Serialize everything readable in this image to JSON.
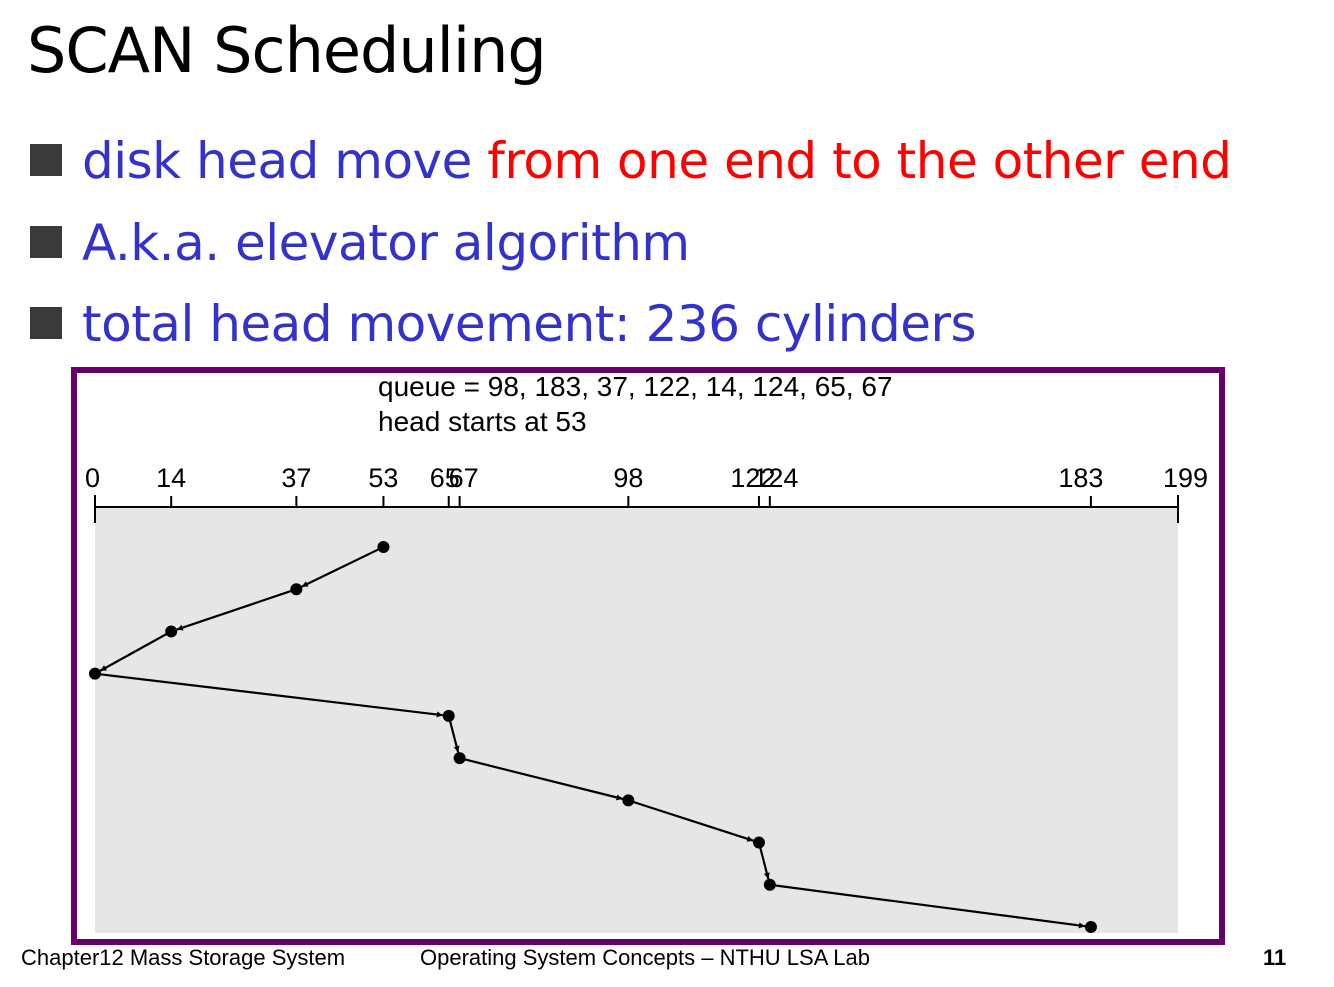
{
  "slide": {
    "title": "SCAN Scheduling",
    "bullets": [
      {
        "text_blue": "disk head move ",
        "text_red": "from one end to the other end"
      },
      {
        "text_blue": "A.k.a. elevator algorithm",
        "text_red": ""
      },
      {
        "text_blue": "total head movement: 236 cylinders",
        "text_red": ""
      }
    ],
    "colors": {
      "bullet_text": "#3333cc",
      "highlight": "#ff0000",
      "frame_border": "#660066",
      "plot_background": "#e6e6e6"
    }
  },
  "figure": {
    "queue_label": "queue = 98, 183, 37, 122, 14, 124, 65, 67",
    "head_label": "head starts at 53",
    "axis_ticks": [
      0,
      14,
      37,
      53,
      65,
      67,
      98,
      122,
      124,
      183,
      199
    ],
    "head_path": [
      53,
      37,
      14,
      0,
      65,
      67,
      98,
      122,
      124,
      183
    ]
  },
  "footer": {
    "chapter": "Chapter12  Mass Storage System",
    "course": "Operating System Concepts – NTHU LSA Lab",
    "page_number": "11"
  }
}
